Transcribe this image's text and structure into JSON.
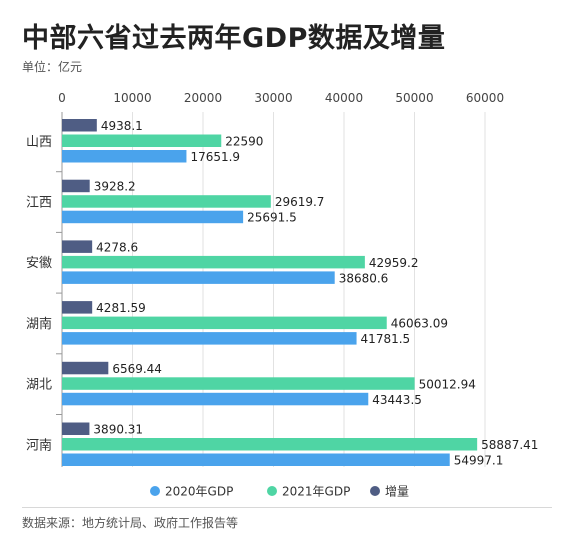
{
  "header": {
    "title": "中部六省过去两年GDP数据及增量",
    "unit": "单位：亿元"
  },
  "footer": {
    "source": "数据来源：地方统计局、政府工作报告等"
  },
  "colors": {
    "gdp2020": "#4aa3ec",
    "gdp2021": "#4fd5a4",
    "increase": "#4f5d84",
    "grid": "#e2e2e2",
    "axis": "#999999"
  },
  "chart_data": {
    "type": "bar",
    "orientation": "horizontal",
    "title": "中部六省过去两年GDP数据及增量",
    "xlim": [
      0,
      60000
    ],
    "x_ticks": [
      0,
      10000,
      20000,
      30000,
      40000,
      50000,
      60000
    ],
    "x_axis_position": "top",
    "grid": true,
    "legend_position": "bottom-center",
    "categories": [
      "山西",
      "江西",
      "安徽",
      "湖南",
      "湖北",
      "河南"
    ],
    "series": [
      {
        "name": "增量",
        "color_key": "increase",
        "values": [
          4938.1,
          3928.2,
          4278.6,
          4281.59,
          6569.44,
          3890.31
        ],
        "labels": [
          "4938.1",
          "3928.2",
          "4278.6",
          "4281.59",
          "6569.44",
          "3890.31"
        ]
      },
      {
        "name": "2021年GDP",
        "color_key": "gdp2021",
        "values": [
          22590,
          29619.7,
          42959.2,
          46063.09,
          50012.94,
          58887.41
        ],
        "labels": [
          "22590",
          "29619.7",
          "42959.2",
          "46063.09",
          "50012.94",
          "58887.41"
        ]
      },
      {
        "name": "2020年GDP",
        "color_key": "gdp2020",
        "values": [
          17651.9,
          25691.5,
          38680.6,
          41781.5,
          43443.5,
          54997.1
        ],
        "labels": [
          "17651.9",
          "25691.5",
          "38680.6",
          "41781.5",
          "43443.5",
          "54997.1"
        ]
      }
    ],
    "legend": [
      {
        "name": "2020年GDP",
        "color_key": "gdp2020"
      },
      {
        "name": "2021年GDP",
        "color_key": "gdp2021"
      },
      {
        "name": "增量",
        "color_key": "increase"
      }
    ]
  }
}
